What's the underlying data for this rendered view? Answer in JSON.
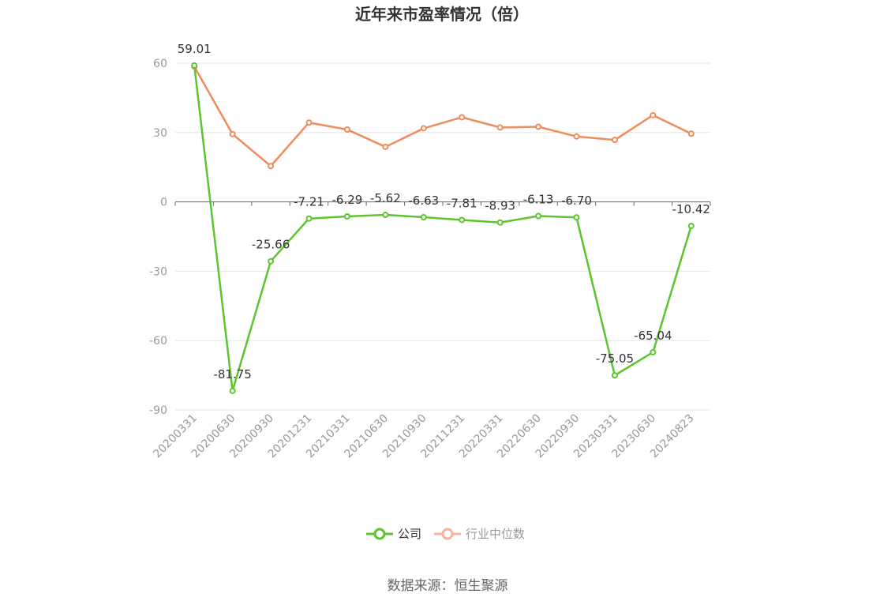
{
  "chart_data": {
    "type": "line",
    "title": "近年来市盈率情况（倍）",
    "categories": [
      "20200331",
      "20200630",
      "20200930",
      "20201231",
      "20210331",
      "20210630",
      "20210930",
      "20211231",
      "20220331",
      "20220630",
      "20220930",
      "20230331",
      "20230630",
      "20240823"
    ],
    "ylim": [
      -90,
      60
    ],
    "yticks": [
      60,
      30,
      0,
      -30,
      -60,
      -90
    ],
    "grid": true,
    "legend_position": "bottom-center",
    "series": [
      {
        "name": "公司",
        "color": "#5cc52e",
        "values": [
          59.01,
          -81.75,
          -25.66,
          -7.21,
          -6.29,
          -5.62,
          -6.63,
          -7.81,
          -8.93,
          -6.13,
          -6.7,
          -75.05,
          -65.04,
          -10.42
        ],
        "labels": [
          "59.01",
          "-81.75",
          "-25.66",
          "-7.21",
          "-6.29",
          "-5.62",
          "-6.63",
          "-7.81",
          "-8.93",
          "-6.13",
          "-6.70",
          "-75.05",
          "-65.04",
          "-10.42"
        ]
      },
      {
        "name": "行业中位数",
        "color": "#f08c5c",
        "values": [
          58.5,
          29.3,
          15.5,
          34.3,
          31.3,
          23.8,
          31.8,
          36.6,
          32.2,
          32.5,
          28.3,
          26.8,
          37.5,
          29.5
        ]
      }
    ],
    "source": "数据来源：恒生聚源"
  }
}
